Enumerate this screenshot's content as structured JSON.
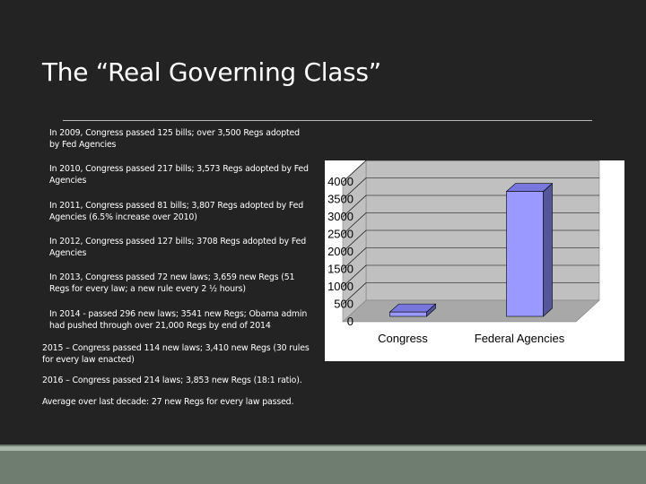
{
  "slide": {
    "title": "The “Real Governing Class”"
  },
  "bullets": [
    {
      "text": "In 2009, Congress passed 125 bills; over 3,500 Regs adopted by Fed Agencies"
    },
    {
      "text": "In 2010, Congress passed 217 bills; 3,573 Regs adopted by Fed Agencies"
    },
    {
      "text": "In 2011, Congress passed 81 bills; 3,807 Regs adopted by Fed Agencies (6.5% increase over 2010)"
    },
    {
      "text": "In 2012, Congress passed 127 bills; 3708 Regs adopted by Fed Agencies"
    },
    {
      "text": "In 2013, Congress passed 72 new laws; 3,659 new Regs (51 Regs for every law; a new rule every 2 ½ hours)"
    },
    {
      "text": "In 2014 - passed 296 new laws; 3541 new Regs; Obama admin had pushed through over 21,000 Regs by end of 2014"
    },
    {
      "text": "2015 – Congress passed 114 new laws; 3,410 new Regs (30 rules for every law enacted)"
    },
    {
      "text": "2016 – Congress passed 214 laws; 3,853 new Regs (18:1 ratio)."
    },
    {
      "text": "Average over last decade: 27 new Regs for every law passed."
    }
  ],
  "chart_data": {
    "type": "bar",
    "categories": [
      "Congress",
      "Federal Agencies"
    ],
    "values": [
      125,
      3573
    ],
    "title": "",
    "xlabel": "",
    "ylabel": "",
    "ylim": [
      0,
      4000
    ],
    "yticks": [
      0,
      500,
      1000,
      1500,
      2000,
      2500,
      3000,
      3500,
      4000
    ],
    "grid": true,
    "legend": "none",
    "colors": {
      "bar_front": "#9999ff",
      "bar_top": "#7777dd",
      "bar_side": "#555599",
      "wall": "#c0c0c0",
      "floor": "#a8a8a8",
      "grid": "#000000"
    }
  }
}
